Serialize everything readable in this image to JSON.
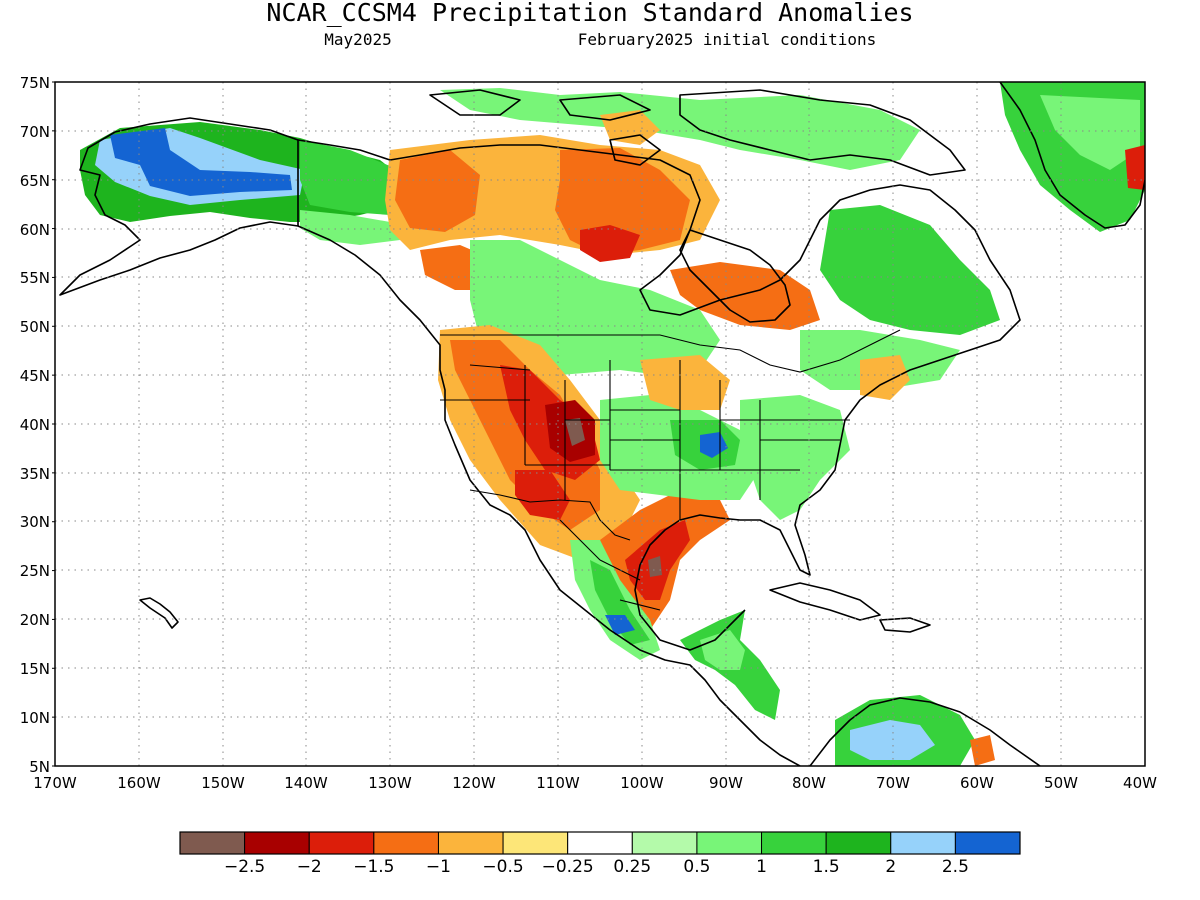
{
  "header": {
    "title": "NCAR_CCSM4 Precipitation Standard Anomalies",
    "valid_month": "May2025",
    "init": "February2025 initial conditions"
  },
  "map": {
    "lat_labels": [
      "75N",
      "70N",
      "65N",
      "60N",
      "55N",
      "50N",
      "45N",
      "40N",
      "35N",
      "30N",
      "25N",
      "20N",
      "15N",
      "10N",
      "5N"
    ],
    "lon_labels": [
      "170W",
      "160W",
      "150W",
      "140W",
      "130W",
      "120W",
      "110W",
      "100W",
      "90W",
      "80W",
      "70W",
      "60W",
      "50W",
      "40W"
    ],
    "lat_range": [
      5,
      75
    ],
    "lon_range": [
      -170,
      -40
    ],
    "gridlines": "dotted"
  },
  "colorbar": {
    "colors": [
      "#7f5a4f",
      "#a80000",
      "#dc1e0a",
      "#f56e14",
      "#fbb43c",
      "#fde678",
      "#ffffff",
      "#b4faaa",
      "#78f578",
      "#37d23c",
      "#1eb41e",
      "#96d2fa",
      "#1464d2"
    ],
    "tick_labels": [
      "−2.5",
      "−2",
      "−1.5",
      "−1",
      "−0.5",
      "−0.25",
      "0.25",
      "0.5",
      "1",
      "1.5",
      "2",
      "2.5"
    ]
  },
  "anomaly_regions": [
    {
      "name": "alaska-north",
      "value": 2.0,
      "color": "#1eb41e"
    },
    {
      "name": "alaska-interior",
      "value": 2.5,
      "color": "#1464d2"
    },
    {
      "name": "yukon-bc",
      "value": 1.5,
      "color": "#37d23c"
    },
    {
      "name": "nwt",
      "value": -1.0,
      "color": "#f56e14"
    },
    {
      "name": "hudson-bay-west",
      "value": -1.5,
      "color": "#dc1e0a"
    },
    {
      "name": "quebec",
      "value": -1.0,
      "color": "#f56e14"
    },
    {
      "name": "labrador",
      "value": 1.5,
      "color": "#37d23c"
    },
    {
      "name": "greenland",
      "value": 1.5,
      "color": "#37d23c"
    },
    {
      "name": "prairies",
      "value": 1.5,
      "color": "#37d23c"
    },
    {
      "name": "pacific-nw",
      "value": -1.0,
      "color": "#f56e14"
    },
    {
      "name": "great-basin",
      "value": -1.5,
      "color": "#dc1e0a"
    },
    {
      "name": "colorado",
      "value": -2.5,
      "color": "#7f5a4f"
    },
    {
      "name": "southwest",
      "value": -1.0,
      "color": "#f56e14"
    },
    {
      "name": "texas-gulf",
      "value": -2.0,
      "color": "#a80000"
    },
    {
      "name": "mississippi-valley",
      "value": 2.5,
      "color": "#1464d2"
    },
    {
      "name": "southeast",
      "value": 0.5,
      "color": "#78f578"
    },
    {
      "name": "mexico-west",
      "value": 1.0,
      "color": "#78f578"
    },
    {
      "name": "central-america",
      "value": 1.5,
      "color": "#37d23c"
    },
    {
      "name": "venezuela",
      "value": 2.0,
      "color": "#96d2fa"
    }
  ]
}
